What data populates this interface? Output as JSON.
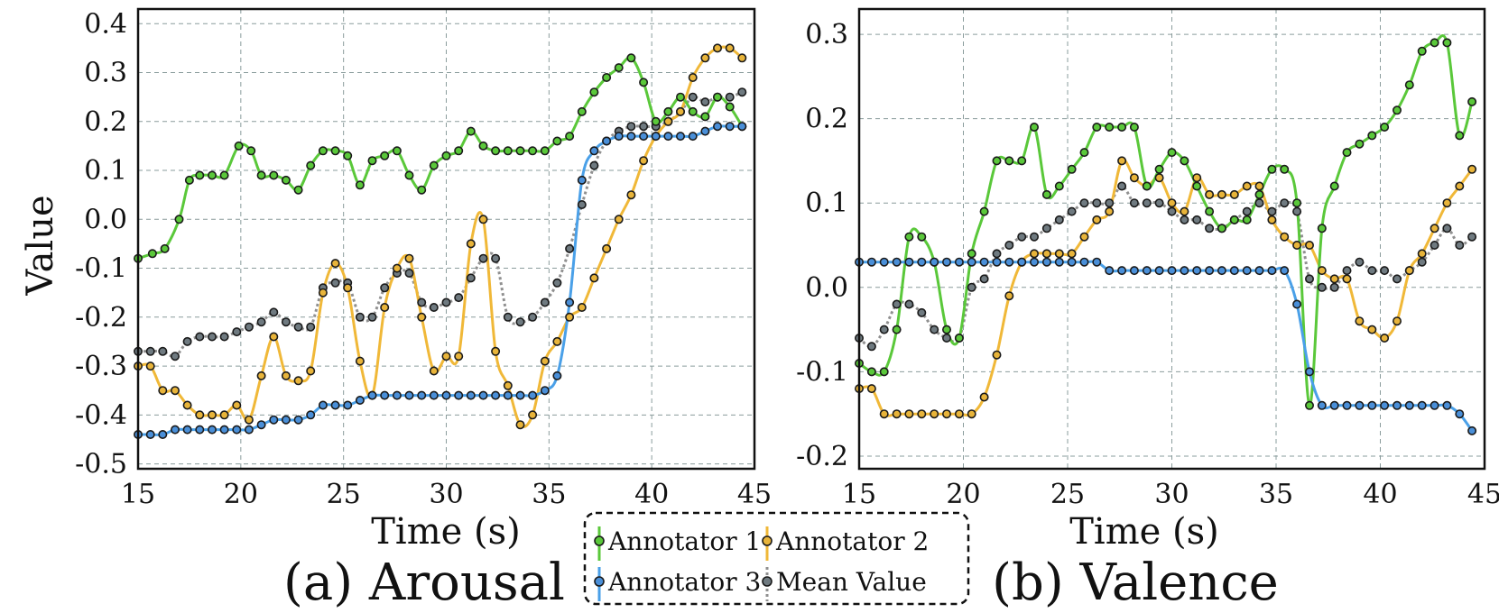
{
  "chart_data": [
    {
      "type": "line",
      "title": "(a) Arousal",
      "xlabel": "Time (s)",
      "ylabel": "Value",
      "xlim": [
        15,
        45
      ],
      "ylim": [
        -0.51,
        0.43
      ],
      "xticks": [
        "15",
        "20",
        "25",
        "30",
        "35",
        "40",
        "45"
      ],
      "yticks": [
        "-0.5",
        "-0.4",
        "-0.3",
        "-0.2",
        "-0.1",
        "0.0",
        "0.1",
        "0.2",
        "0.3",
        "0.4"
      ],
      "grid": true,
      "series": [
        {
          "name": "Annotator 1",
          "x": [
            15,
            15.7,
            16.3,
            17,
            17.5,
            18,
            18.6,
            19.2,
            19.9,
            20.5,
            21,
            21.6,
            22.2,
            22.8,
            23.4,
            24,
            24.6,
            25.2,
            25.8,
            26.4,
            27.0,
            27.6,
            28.2,
            28.8,
            29.4,
            30.0,
            30.6,
            31.2,
            31.8,
            32.4,
            33.0,
            33.6,
            34.2,
            34.8,
            35.4,
            36.0,
            36.6,
            37.2,
            37.8,
            38.4,
            39.0,
            39.6,
            40.2,
            40.8,
            41.4,
            42.0,
            42.6,
            43.2,
            43.8,
            44.4
          ],
          "values": [
            -0.08,
            -0.07,
            -0.06,
            0.0,
            0.08,
            0.09,
            0.09,
            0.09,
            0.15,
            0.14,
            0.09,
            0.09,
            0.08,
            0.06,
            0.11,
            0.14,
            0.14,
            0.13,
            0.07,
            0.12,
            0.13,
            0.14,
            0.09,
            0.06,
            0.11,
            0.13,
            0.14,
            0.18,
            0.15,
            0.14,
            0.14,
            0.14,
            0.14,
            0.14,
            0.16,
            0.17,
            0.22,
            0.26,
            0.29,
            0.31,
            0.33,
            0.28,
            0.2,
            0.22,
            0.25,
            0.22,
            0.21,
            0.25,
            0.23,
            0.19
          ]
        },
        {
          "name": "Annotator 2",
          "x": [
            15,
            15.6,
            16.2,
            16.8,
            17.4,
            18,
            18.6,
            19.2,
            19.8,
            20.4,
            21,
            21.6,
            22.2,
            22.8,
            23.4,
            24,
            24.6,
            25.2,
            25.8,
            26.4,
            27.0,
            27.6,
            28.2,
            28.8,
            29.4,
            30.0,
            30.6,
            31.2,
            31.8,
            32.4,
            33.0,
            33.6,
            34.2,
            34.8,
            35.4,
            36.0,
            36.6,
            37.2,
            37.8,
            38.4,
            39.0,
            39.6,
            40.2,
            40.8,
            41.4,
            42.0,
            42.6,
            43.2,
            43.8,
            44.4
          ],
          "values": [
            -0.3,
            -0.3,
            -0.35,
            -0.35,
            -0.38,
            -0.4,
            -0.4,
            -0.4,
            -0.38,
            -0.41,
            -0.32,
            -0.24,
            -0.32,
            -0.33,
            -0.31,
            -0.15,
            -0.09,
            -0.14,
            -0.29,
            -0.36,
            -0.18,
            -0.1,
            -0.08,
            -0.2,
            -0.31,
            -0.28,
            -0.28,
            -0.05,
            0.0,
            -0.27,
            -0.34,
            -0.42,
            -0.4,
            -0.29,
            -0.25,
            -0.2,
            -0.18,
            -0.12,
            -0.06,
            0.0,
            0.05,
            0.12,
            0.17,
            0.2,
            0.22,
            0.29,
            0.33,
            0.35,
            0.35,
            0.33
          ]
        },
        {
          "name": "Annotator 3",
          "x": [
            15,
            15.6,
            16.2,
            16.8,
            17.4,
            18,
            18.6,
            19.2,
            19.8,
            20.4,
            21,
            21.6,
            22.2,
            22.8,
            23.4,
            24,
            24.6,
            25.2,
            25.8,
            26.4,
            27.0,
            27.6,
            28.2,
            28.8,
            29.4,
            30.0,
            30.6,
            31.2,
            31.8,
            32.4,
            33.0,
            33.6,
            34.2,
            34.8,
            35.4,
            36.0,
            36.6,
            37.2,
            37.8,
            38.4,
            39.0,
            39.6,
            40.2,
            40.8,
            41.4,
            42.0,
            42.6,
            43.2,
            43.8,
            44.4
          ],
          "values": [
            -0.44,
            -0.44,
            -0.44,
            -0.43,
            -0.43,
            -0.43,
            -0.43,
            -0.43,
            -0.43,
            -0.43,
            -0.42,
            -0.41,
            -0.41,
            -0.41,
            -0.4,
            -0.38,
            -0.38,
            -0.38,
            -0.37,
            -0.36,
            -0.36,
            -0.36,
            -0.36,
            -0.36,
            -0.36,
            -0.36,
            -0.36,
            -0.36,
            -0.36,
            -0.36,
            -0.36,
            -0.36,
            -0.36,
            -0.35,
            -0.32,
            -0.17,
            0.08,
            0.14,
            0.16,
            0.17,
            0.17,
            0.17,
            0.17,
            0.17,
            0.17,
            0.17,
            0.18,
            0.19,
            0.19,
            0.19
          ]
        },
        {
          "name": "Mean Value",
          "x": [
            15,
            15.6,
            16.2,
            16.8,
            17.4,
            18,
            18.6,
            19.2,
            19.8,
            20.4,
            21,
            21.6,
            22.2,
            22.8,
            23.4,
            24,
            24.6,
            25.2,
            25.8,
            26.4,
            27.0,
            27.6,
            28.2,
            28.8,
            29.4,
            30.0,
            30.6,
            31.2,
            31.8,
            32.4,
            33.0,
            33.6,
            34.2,
            34.8,
            35.4,
            36.0,
            36.6,
            37.2,
            37.8,
            38.4,
            39.0,
            39.6,
            40.2,
            40.8,
            41.4,
            42.0,
            42.6,
            43.2,
            43.8,
            44.4
          ],
          "values": [
            -0.27,
            -0.27,
            -0.27,
            -0.28,
            -0.25,
            -0.24,
            -0.24,
            -0.24,
            -0.23,
            -0.22,
            -0.21,
            -0.19,
            -0.21,
            -0.22,
            -0.22,
            -0.14,
            -0.13,
            -0.13,
            -0.2,
            -0.2,
            -0.14,
            -0.11,
            -0.11,
            -0.17,
            -0.18,
            -0.17,
            -0.16,
            -0.12,
            -0.08,
            -0.08,
            -0.2,
            -0.21,
            -0.2,
            -0.17,
            -0.13,
            -0.06,
            0.03,
            0.11,
            0.16,
            0.18,
            0.19,
            0.19,
            0.19,
            0.2,
            0.22,
            0.25,
            0.24,
            0.25,
            0.25,
            0.26
          ]
        }
      ]
    },
    {
      "type": "line",
      "title": "(b) Valence",
      "xlabel": "Time (s)",
      "ylabel": "",
      "xlim": [
        15,
        45
      ],
      "ylim": [
        -0.215,
        0.33
      ],
      "xticks": [
        "15",
        "20",
        "25",
        "30",
        "35",
        "40",
        "45"
      ],
      "yticks": [
        "-0.2",
        "-0.1",
        "0.0",
        "0.1",
        "0.2",
        "0.3"
      ],
      "grid": true,
      "series": [
        {
          "name": "Annotator 1",
          "x": [
            15,
            15.6,
            16.2,
            16.8,
            17.4,
            18,
            18.6,
            19.2,
            19.8,
            20.4,
            21,
            21.6,
            22.2,
            22.8,
            23.4,
            24,
            24.6,
            25.2,
            25.8,
            26.4,
            27.0,
            27.6,
            28.2,
            28.8,
            29.4,
            30.0,
            30.6,
            31.2,
            31.8,
            32.4,
            33.0,
            33.6,
            34.2,
            34.8,
            35.4,
            36.0,
            36.6,
            37.2,
            37.8,
            38.4,
            39.0,
            39.6,
            40.2,
            40.8,
            41.4,
            42.0,
            42.6,
            43.2,
            43.8,
            44.4
          ],
          "values": [
            -0.09,
            -0.1,
            -0.1,
            -0.05,
            0.06,
            0.06,
            0.03,
            -0.05,
            -0.06,
            0.04,
            0.09,
            0.15,
            0.15,
            0.15,
            0.19,
            0.11,
            0.12,
            0.14,
            0.16,
            0.19,
            0.19,
            0.19,
            0.19,
            0.12,
            0.14,
            0.16,
            0.15,
            0.12,
            0.09,
            0.07,
            0.08,
            0.08,
            0.11,
            0.14,
            0.14,
            0.1,
            -0.14,
            0.07,
            0.12,
            0.16,
            0.17,
            0.18,
            0.19,
            0.21,
            0.24,
            0.28,
            0.29,
            0.29,
            0.18,
            0.22
          ]
        },
        {
          "name": "Annotator 2",
          "x": [
            15,
            15.6,
            16.2,
            16.8,
            17.4,
            18,
            18.6,
            19.2,
            19.8,
            20.4,
            21,
            21.6,
            22.2,
            22.8,
            23.4,
            24,
            24.6,
            25.2,
            25.8,
            26.4,
            27.0,
            27.6,
            28.2,
            28.8,
            29.4,
            30.0,
            30.6,
            31.2,
            31.8,
            32.4,
            33.0,
            33.6,
            34.2,
            34.8,
            35.4,
            36.0,
            36.6,
            37.2,
            37.8,
            38.4,
            39.0,
            39.6,
            40.2,
            40.8,
            41.4,
            42.0,
            42.6,
            43.2,
            43.8,
            44.4
          ],
          "values": [
            -0.12,
            -0.12,
            -0.15,
            -0.15,
            -0.15,
            -0.15,
            -0.15,
            -0.15,
            -0.15,
            -0.15,
            -0.13,
            -0.08,
            -0.01,
            0.03,
            0.04,
            0.04,
            0.04,
            0.04,
            0.06,
            0.08,
            0.09,
            0.15,
            0.13,
            0.12,
            0.13,
            0.1,
            0.09,
            0.13,
            0.11,
            0.11,
            0.11,
            0.12,
            0.12,
            0.08,
            0.06,
            0.05,
            0.05,
            0.02,
            0.01,
            0.01,
            -0.04,
            -0.05,
            -0.06,
            -0.04,
            0.02,
            0.04,
            0.07,
            0.1,
            0.12,
            0.14
          ]
        },
        {
          "name": "Annotator 3",
          "x": [
            15,
            15.6,
            16.2,
            16.8,
            17.4,
            18,
            18.6,
            19.2,
            19.8,
            20.4,
            21,
            21.6,
            22.2,
            22.8,
            23.4,
            24,
            24.6,
            25.2,
            25.8,
            26.4,
            27.0,
            27.6,
            28.2,
            28.8,
            29.4,
            30.0,
            30.6,
            31.2,
            31.8,
            32.4,
            33.0,
            33.6,
            34.2,
            34.8,
            35.4,
            36.0,
            36.6,
            37.2,
            37.8,
            38.4,
            39.0,
            39.6,
            40.2,
            40.8,
            41.4,
            42.0,
            42.6,
            43.2,
            43.8,
            44.4
          ],
          "values": [
            0.03,
            0.03,
            0.03,
            0.03,
            0.03,
            0.03,
            0.03,
            0.03,
            0.03,
            0.03,
            0.03,
            0.03,
            0.03,
            0.03,
            0.03,
            0.03,
            0.03,
            0.03,
            0.03,
            0.03,
            0.02,
            0.02,
            0.02,
            0.02,
            0.02,
            0.02,
            0.02,
            0.02,
            0.02,
            0.02,
            0.02,
            0.02,
            0.02,
            0.02,
            0.02,
            -0.02,
            -0.1,
            -0.14,
            -0.14,
            -0.14,
            -0.14,
            -0.14,
            -0.14,
            -0.14,
            -0.14,
            -0.14,
            -0.14,
            -0.14,
            -0.15,
            -0.17
          ]
        },
        {
          "name": "Mean Value",
          "x": [
            15,
            15.6,
            16.2,
            16.8,
            17.4,
            18,
            18.6,
            19.2,
            19.8,
            20.4,
            21,
            21.6,
            22.2,
            22.8,
            23.4,
            24,
            24.6,
            25.2,
            25.8,
            26.4,
            27.0,
            27.6,
            28.2,
            28.8,
            29.4,
            30.0,
            30.6,
            31.2,
            31.8,
            32.4,
            33.0,
            33.6,
            34.2,
            34.8,
            35.4,
            36.0,
            36.6,
            37.2,
            37.8,
            38.4,
            39.0,
            39.6,
            40.2,
            40.8,
            41.4,
            42.0,
            42.6,
            43.2,
            43.8,
            44.4
          ],
          "values": [
            -0.06,
            -0.07,
            -0.05,
            -0.02,
            -0.02,
            -0.03,
            -0.05,
            -0.06,
            -0.06,
            0.0,
            0.01,
            0.04,
            0.05,
            0.06,
            0.06,
            0.07,
            0.08,
            0.09,
            0.1,
            0.1,
            0.1,
            0.12,
            0.1,
            0.1,
            0.1,
            0.09,
            0.08,
            0.08,
            0.07,
            0.07,
            0.08,
            0.09,
            0.1,
            0.09,
            0.1,
            0.09,
            0.01,
            0.0,
            0.0,
            0.02,
            0.03,
            0.02,
            0.02,
            0.01,
            0.02,
            0.03,
            0.05,
            0.07,
            0.05,
            0.06
          ]
        }
      ]
    }
  ],
  "legend": {
    "items": [
      {
        "label": "Annotator 1",
        "color": "#5ac83a"
      },
      {
        "label": "Annotator 2",
        "color": "#f0b838"
      },
      {
        "label": "Annotator 3",
        "color": "#4aa0e8"
      },
      {
        "label": "Mean Value",
        "color": "#909090"
      }
    ]
  },
  "colors": {
    "annotator1": "#5ac83a",
    "annotator2": "#f0b838",
    "annotator3": "#4aa0e8",
    "mean": "#909090",
    "marker_fill_a1": "#5ac83a",
    "marker_fill_a2": "#e8b43a",
    "marker_fill_a3": "#4a8fd8",
    "marker_fill_mean": "#6f7a80"
  }
}
